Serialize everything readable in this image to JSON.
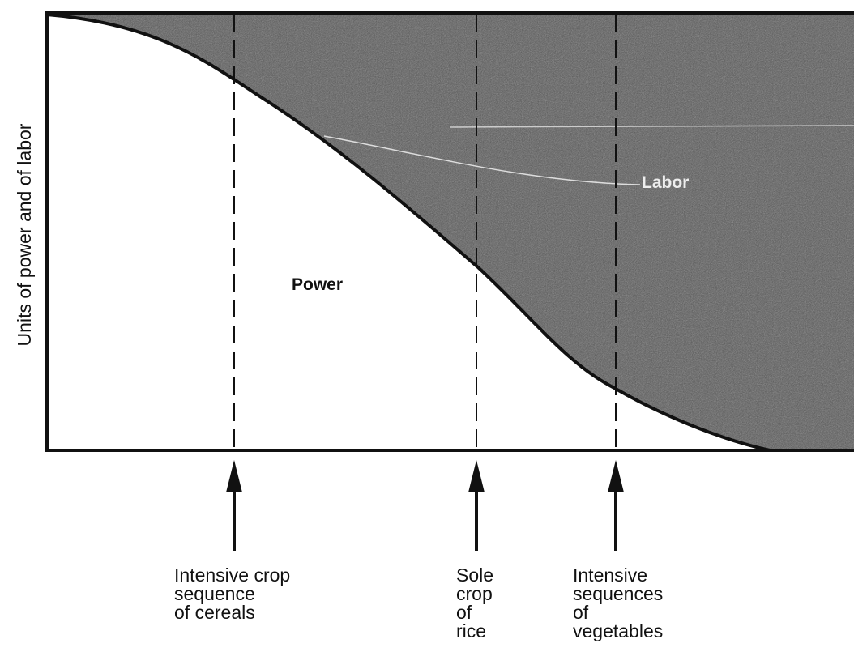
{
  "axis_label": "Units of power and  of labor",
  "regions": {
    "power": "Power",
    "labor": "Labor"
  },
  "markers": [
    {
      "lines": [
        "Intensive crop",
        "sequence",
        "of cereals"
      ]
    },
    {
      "lines": [
        "Sole",
        "crop",
        "of",
        "rice"
      ]
    },
    {
      "lines": [
        "Intensive",
        "sequences",
        "of",
        "vegetables"
      ]
    }
  ]
}
